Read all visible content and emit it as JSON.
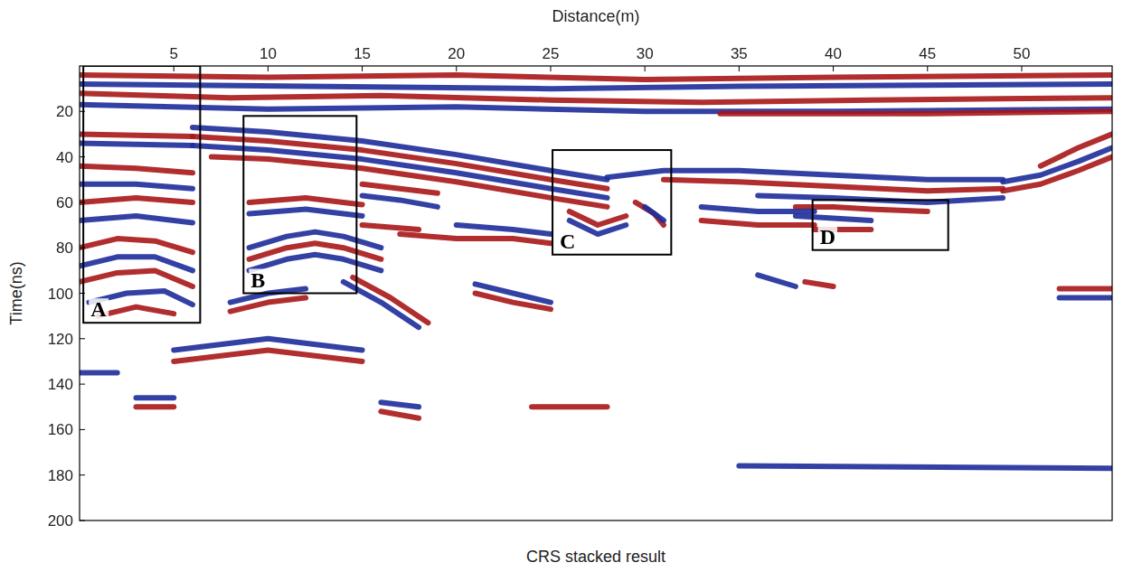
{
  "chart_data": {
    "type": "radargram",
    "title": "CRS stacked result",
    "x_label": "Distance(m)",
    "y_label": "Time(ns)",
    "xlim": [
      0,
      54.8
    ],
    "ylim": [
      0,
      200
    ],
    "xticks": [
      5,
      10,
      15,
      20,
      25,
      30,
      35,
      40,
      45,
      50
    ],
    "yticks": [
      20,
      40,
      60,
      80,
      100,
      120,
      140,
      160,
      180,
      200
    ],
    "reflectors": [
      {
        "color": "#a8141a",
        "x": [
          0,
          10,
          20,
          30,
          40,
          54.8
        ],
        "y": [
          4,
          5,
          4,
          6,
          5,
          4
        ]
      },
      {
        "color": "#1f2f9a",
        "x": [
          0,
          12,
          25,
          35,
          54.8
        ],
        "y": [
          8,
          9,
          10,
          9,
          8
        ]
      },
      {
        "color": "#a8141a",
        "x": [
          0,
          8,
          16,
          25,
          33,
          42,
          54.8
        ],
        "y": [
          12,
          14,
          13,
          15,
          16,
          15,
          14
        ]
      },
      {
        "color": "#1f2f9a",
        "x": [
          0,
          10,
          20,
          30,
          40,
          54.8
        ],
        "y": [
          17,
          19,
          18,
          20,
          20,
          19
        ]
      },
      {
        "color": "#a8141a",
        "x": [
          34,
          45,
          54.8
        ],
        "y": [
          21,
          21,
          20
        ]
      },
      {
        "color": "#1f2f9a",
        "x": [
          6,
          10,
          15,
          20,
          25,
          28
        ],
        "y": [
          27,
          29,
          33,
          39,
          46,
          50
        ]
      },
      {
        "color": "#a8141a",
        "x": [
          6,
          10,
          15,
          20,
          25,
          28
        ],
        "y": [
          31,
          33,
          37,
          43,
          50,
          54
        ]
      },
      {
        "color": "#1f2f9a",
        "x": [
          6,
          10,
          15,
          20,
          25,
          28
        ],
        "y": [
          35,
          37,
          41,
          47,
          54,
          58
        ]
      },
      {
        "color": "#a8141a",
        "x": [
          7,
          10,
          15,
          20,
          25,
          28
        ],
        "y": [
          40,
          41,
          45,
          51,
          58,
          62
        ]
      },
      {
        "color": "#1f2f9a",
        "x": [
          28,
          31,
          35,
          40,
          45,
          49
        ],
        "y": [
          49,
          46,
          46,
          48,
          50,
          50
        ]
      },
      {
        "color": "#a8141a",
        "x": [
          31,
          35,
          40,
          45,
          49
        ],
        "y": [
          50,
          51,
          53,
          55,
          54
        ]
      },
      {
        "color": "#1f2f9a",
        "x": [
          36,
          40,
          45,
          49
        ],
        "y": [
          57,
          58,
          60,
          58
        ]
      },
      {
        "color": "#a8141a",
        "x": [
          49,
          51,
          53,
          54.8
        ],
        "y": [
          55,
          52,
          46,
          40
        ]
      },
      {
        "color": "#1f2f9a",
        "x": [
          49,
          51,
          53,
          54.8
        ],
        "y": [
          51,
          48,
          42,
          36
        ]
      },
      {
        "color": "#a8141a",
        "x": [
          51,
          53,
          54.8
        ],
        "y": [
          44,
          36,
          30
        ]
      },
      {
        "color": "#a8141a",
        "x": [
          0,
          6
        ],
        "y": [
          30,
          31
        ]
      },
      {
        "color": "#1f2f9a",
        "x": [
          0,
          6
        ],
        "y": [
          34,
          35
        ]
      },
      {
        "color": "#a8141a",
        "x": [
          0,
          3,
          6
        ],
        "y": [
          44,
          45,
          47
        ]
      },
      {
        "color": "#1f2f9a",
        "x": [
          0,
          3,
          6
        ],
        "y": [
          52,
          52,
          54
        ]
      },
      {
        "color": "#a8141a",
        "x": [
          0,
          3,
          6
        ],
        "y": [
          60,
          58,
          60
        ]
      },
      {
        "color": "#1f2f9a",
        "x": [
          0,
          3,
          6
        ],
        "y": [
          68,
          66,
          69
        ]
      },
      {
        "color": "#a8141a",
        "x": [
          0,
          2,
          4,
          6
        ],
        "y": [
          80,
          76,
          77,
          82
        ]
      },
      {
        "color": "#1f2f9a",
        "x": [
          0,
          2,
          4,
          6
        ],
        "y": [
          88,
          84,
          84,
          90
        ]
      },
      {
        "color": "#a8141a",
        "x": [
          0,
          2,
          4,
          6
        ],
        "y": [
          95,
          91,
          90,
          97
        ]
      },
      {
        "color": "#1f2f9a",
        "x": [
          0.5,
          2.5,
          4.5,
          6
        ],
        "y": [
          104,
          100,
          99,
          105
        ]
      },
      {
        "color": "#a8141a",
        "x": [
          1,
          3,
          5
        ],
        "y": [
          110,
          106,
          109
        ]
      },
      {
        "color": "#1f2f9a",
        "x": [
          9,
          11,
          12.5,
          14,
          16
        ],
        "y": [
          80,
          75,
          73,
          75,
          80
        ]
      },
      {
        "color": "#a8141a",
        "x": [
          9,
          11,
          12.5,
          14,
          16
        ],
        "y": [
          85,
          80,
          78,
          80,
          85
        ]
      },
      {
        "color": "#1f2f9a",
        "x": [
          9,
          11,
          12.5,
          14,
          16
        ],
        "y": [
          90,
          85,
          83,
          85,
          90
        ]
      },
      {
        "color": "#1f2f9a",
        "x": [
          8,
          10,
          12
        ],
        "y": [
          104,
          100,
          98
        ]
      },
      {
        "color": "#a8141a",
        "x": [
          8,
          10,
          12
        ],
        "y": [
          108,
          104,
          102
        ]
      },
      {
        "color": "#a8141a",
        "x": [
          9,
          12,
          15
        ],
        "y": [
          60,
          58,
          61
        ]
      },
      {
        "color": "#1f2f9a",
        "x": [
          9,
          12,
          15
        ],
        "y": [
          65,
          63,
          66
        ]
      },
      {
        "color": "#a8141a",
        "x": [
          15,
          17,
          19
        ],
        "y": [
          52,
          54,
          56
        ]
      },
      {
        "color": "#1f2f9a",
        "x": [
          15,
          17,
          19
        ],
        "y": [
          57,
          59,
          62
        ]
      },
      {
        "color": "#a8141a",
        "x": [
          15,
          18
        ],
        "y": [
          70,
          72
        ]
      },
      {
        "color": "#a8141a",
        "x": [
          17,
          20,
          23,
          25
        ],
        "y": [
          74,
          76,
          76,
          78
        ]
      },
      {
        "color": "#1f2f9a",
        "x": [
          20,
          23,
          25
        ],
        "y": [
          70,
          72,
          74
        ]
      },
      {
        "color": "#1f2f9a",
        "x": [
          21,
          23,
          25
        ],
        "y": [
          96,
          100,
          104
        ]
      },
      {
        "color": "#a8141a",
        "x": [
          21,
          23,
          25
        ],
        "y": [
          100,
          104,
          107
        ]
      },
      {
        "color": "#1f2f9a",
        "x": [
          14,
          16,
          18
        ],
        "y": [
          95,
          104,
          115
        ]
      },
      {
        "color": "#a8141a",
        "x": [
          14.5,
          16.5,
          18.5
        ],
        "y": [
          93,
          102,
          113
        ]
      },
      {
        "color": "#a8141a",
        "x": [
          26,
          27.5,
          29
        ],
        "y": [
          64,
          70,
          66
        ]
      },
      {
        "color": "#1f2f9a",
        "x": [
          26,
          27.5,
          29
        ],
        "y": [
          68,
          74,
          70
        ]
      },
      {
        "color": "#a8141a",
        "x": [
          29.5,
          30.5,
          31
        ],
        "y": [
          60,
          65,
          70
        ]
      },
      {
        "color": "#1f2f9a",
        "x": [
          30,
          31
        ],
        "y": [
          62,
          68
        ]
      },
      {
        "color": "#a8141a",
        "x": [
          39,
          40.5,
          42
        ],
        "y": [
          72,
          72,
          72
        ]
      },
      {
        "color": "#1f2f9a",
        "x": [
          38,
          40,
          42
        ],
        "y": [
          66,
          67,
          68
        ]
      },
      {
        "color": "#a8141a",
        "x": [
          38,
          40,
          42,
          45
        ],
        "y": [
          62,
          62,
          63,
          64
        ]
      },
      {
        "color": "#1f2f9a",
        "x": [
          33,
          36,
          39
        ],
        "y": [
          62,
          64,
          64
        ]
      },
      {
        "color": "#a8141a",
        "x": [
          33,
          36,
          39
        ],
        "y": [
          68,
          70,
          70
        ]
      },
      {
        "color": "#1f2f9a",
        "x": [
          36,
          38
        ],
        "y": [
          92,
          97
        ]
      },
      {
        "color": "#a8141a",
        "x": [
          38.5,
          40
        ],
        "y": [
          95,
          97
        ]
      },
      {
        "color": "#a8141a",
        "x": [
          3,
          5
        ],
        "y": [
          150,
          150
        ]
      },
      {
        "color": "#1f2f9a",
        "x": [
          3,
          5
        ],
        "y": [
          146,
          146
        ]
      },
      {
        "color": "#a8141a",
        "x": [
          16,
          18
        ],
        "y": [
          152,
          155
        ]
      },
      {
        "color": "#1f2f9a",
        "x": [
          16,
          18
        ],
        "y": [
          148,
          150
        ]
      },
      {
        "color": "#1f2f9a",
        "x": [
          5,
          10,
          15
        ],
        "y": [
          125,
          120,
          125
        ]
      },
      {
        "color": "#a8141a",
        "x": [
          5,
          10,
          15
        ],
        "y": [
          130,
          125,
          130
        ]
      },
      {
        "color": "#1f2f9a",
        "x": [
          0,
          2
        ],
        "y": [
          135,
          135
        ]
      },
      {
        "color": "#a8141a",
        "x": [
          24,
          28
        ],
        "y": [
          150,
          150
        ]
      },
      {
        "color": "#1f2f9a",
        "x": [
          35,
          54.8
        ],
        "y": [
          176,
          177
        ]
      },
      {
        "color": "#a8141a",
        "x": [
          52,
          54.8
        ],
        "y": [
          98,
          98
        ]
      },
      {
        "color": "#1f2f9a",
        "x": [
          52,
          54.8
        ],
        "y": [
          102,
          102
        ]
      }
    ],
    "boxes": [
      {
        "label": "A",
        "x": [
          0.2,
          6.4
        ],
        "y": [
          0,
          113
        ]
      },
      {
        "label": "B",
        "x": [
          8.7,
          14.7
        ],
        "y": [
          22,
          100
        ]
      },
      {
        "label": "C",
        "x": [
          25.1,
          31.4
        ],
        "y": [
          37,
          83
        ]
      },
      {
        "label": "D",
        "x": [
          38.9,
          46.1
        ],
        "y": [
          59,
          81
        ]
      }
    ]
  }
}
